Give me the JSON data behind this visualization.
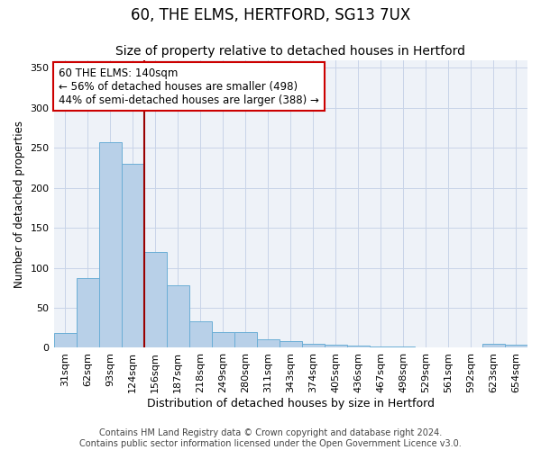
{
  "title": "60, THE ELMS, HERTFORD, SG13 7UX",
  "subtitle": "Size of property relative to detached houses in Hertford",
  "xlabel": "Distribution of detached houses by size in Hertford",
  "ylabel": "Number of detached properties",
  "categories": [
    "31sqm",
    "62sqm",
    "93sqm",
    "124sqm",
    "156sqm",
    "187sqm",
    "218sqm",
    "249sqm",
    "280sqm",
    "311sqm",
    "343sqm",
    "374sqm",
    "405sqm",
    "436sqm",
    "467sqm",
    "498sqm",
    "529sqm",
    "561sqm",
    "592sqm",
    "623sqm",
    "654sqm"
  ],
  "values": [
    18,
    87,
    257,
    230,
    120,
    78,
    33,
    20,
    20,
    11,
    8,
    5,
    4,
    3,
    2,
    2,
    1,
    0,
    0,
    5,
    4
  ],
  "bar_color": "#b8d0e8",
  "bar_edge_color": "#6baed6",
  "marker_color": "#990000",
  "annotation_line1": "60 THE ELMS: 140sqm",
  "annotation_line2": "← 56% of detached houses are smaller (498)",
  "annotation_line3": "44% of semi-detached houses are larger (388) →",
  "annotation_box_color": "white",
  "annotation_box_edge": "#cc0000",
  "footer": "Contains HM Land Registry data © Crown copyright and database right 2024.\nContains public sector information licensed under the Open Government Licence v3.0.",
  "ylim": [
    0,
    360
  ],
  "yticks": [
    0,
    50,
    100,
    150,
    200,
    250,
    300,
    350
  ],
  "title_fontsize": 12,
  "subtitle_fontsize": 10,
  "xlabel_fontsize": 9,
  "ylabel_fontsize": 8.5,
  "tick_fontsize": 8,
  "annotation_fontsize": 8.5,
  "footer_fontsize": 7,
  "bg_color": "#eef2f8"
}
